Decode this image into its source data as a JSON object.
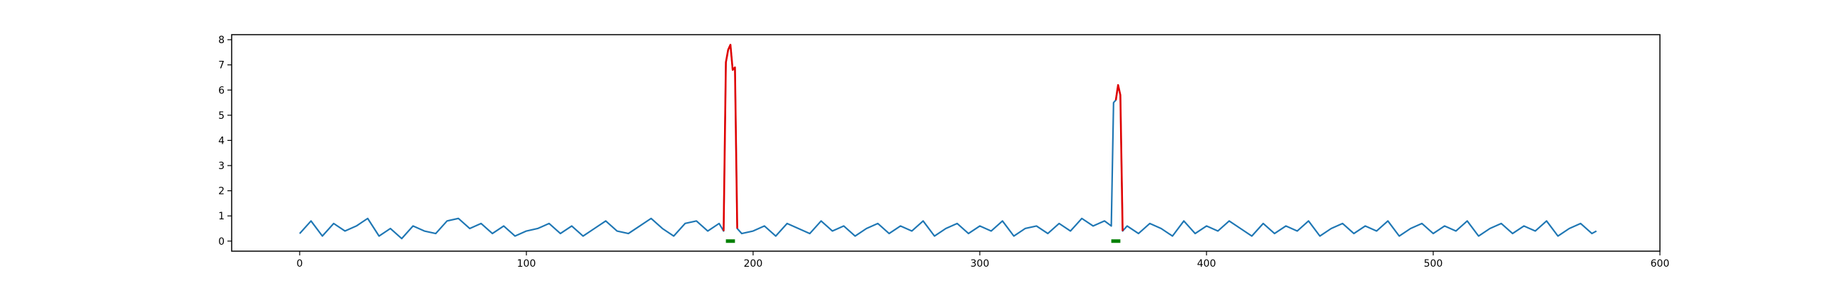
{
  "chart_data": {
    "type": "line",
    "title": "",
    "xlabel": "",
    "ylabel": "",
    "xlim": [
      -30,
      600
    ],
    "ylim": [
      -0.4,
      8.2
    ],
    "grid": false,
    "x_ticks": [
      0,
      100,
      200,
      300,
      400,
      500,
      600
    ],
    "y_ticks": [
      0,
      1,
      2,
      3,
      4,
      5,
      6,
      7,
      8
    ],
    "series": [
      {
        "style": "signal",
        "color": "#1f77b4",
        "x": [
          0,
          5,
          10,
          15,
          20,
          25,
          30,
          35,
          40,
          45,
          50,
          55,
          60,
          65,
          70,
          75,
          80,
          85,
          90,
          95,
          100,
          105,
          110,
          115,
          120,
          125,
          130,
          135,
          140,
          145,
          150,
          155,
          160,
          165,
          170,
          175,
          180,
          185,
          187,
          188,
          189,
          190,
          191,
          192,
          193,
          195,
          200,
          205,
          210,
          215,
          220,
          225,
          230,
          235,
          240,
          245,
          250,
          255,
          260,
          265,
          270,
          275,
          280,
          285,
          290,
          295,
          300,
          305,
          310,
          315,
          320,
          325,
          330,
          335,
          340,
          345,
          350,
          355,
          358,
          359,
          360,
          361,
          362,
          363,
          365,
          370,
          375,
          380,
          385,
          390,
          395,
          400,
          405,
          410,
          415,
          420,
          425,
          430,
          435,
          440,
          445,
          450,
          455,
          460,
          465,
          470,
          475,
          480,
          485,
          490,
          495,
          500,
          505,
          510,
          515,
          520,
          525,
          530,
          535,
          540,
          545,
          550,
          555,
          560,
          565,
          570,
          572
        ],
        "y": [
          0.3,
          0.8,
          0.2,
          0.7,
          0.4,
          0.6,
          0.9,
          0.2,
          0.5,
          0.1,
          0.6,
          0.4,
          0.3,
          0.8,
          0.9,
          0.5,
          0.7,
          0.3,
          0.6,
          0.2,
          0.4,
          0.5,
          0.7,
          0.3,
          0.6,
          0.2,
          0.5,
          0.8,
          0.4,
          0.3,
          0.6,
          0.9,
          0.5,
          0.2,
          0.7,
          0.8,
          0.4,
          0.7,
          0.4,
          7.1,
          7.6,
          7.8,
          6.8,
          6.9,
          0.5,
          0.3,
          0.4,
          0.6,
          0.2,
          0.7,
          0.5,
          0.3,
          0.8,
          0.4,
          0.6,
          0.2,
          0.5,
          0.7,
          0.3,
          0.6,
          0.4,
          0.8,
          0.2,
          0.5,
          0.7,
          0.3,
          0.6,
          0.4,
          0.8,
          0.2,
          0.5,
          0.6,
          0.3,
          0.7,
          0.4,
          0.9,
          0.6,
          0.8,
          0.6,
          5.5,
          5.6,
          6.2,
          5.8,
          0.4,
          0.6,
          0.3,
          0.7,
          0.5,
          0.2,
          0.8,
          0.3,
          0.6,
          0.4,
          0.8,
          0.5,
          0.2,
          0.7,
          0.3,
          0.6,
          0.4,
          0.8,
          0.2,
          0.5,
          0.7,
          0.3,
          0.6,
          0.4,
          0.8,
          0.2,
          0.5,
          0.7,
          0.3,
          0.6,
          0.4,
          0.8,
          0.2,
          0.5,
          0.7,
          0.3,
          0.6,
          0.4,
          0.8,
          0.2,
          0.5,
          0.7,
          0.3,
          0.4
        ]
      },
      {
        "style": "anomaly",
        "color": "#e00000",
        "x": [
          187,
          188,
          189,
          190,
          191,
          192,
          193
        ],
        "y": [
          0.4,
          7.1,
          7.6,
          7.8,
          6.8,
          6.9,
          0.5
        ]
      },
      {
        "style": "anomaly",
        "color": "#e00000",
        "x": [
          360,
          361,
          362,
          363
        ],
        "y": [
          5.6,
          6.2,
          5.8,
          0.4
        ]
      }
    ],
    "markers": [
      {
        "color": "#008000",
        "x_start": 188,
        "x_end": 192,
        "y": 0
      },
      {
        "color": "#008000",
        "x_start": 358,
        "x_end": 362,
        "y": 0
      }
    ]
  }
}
